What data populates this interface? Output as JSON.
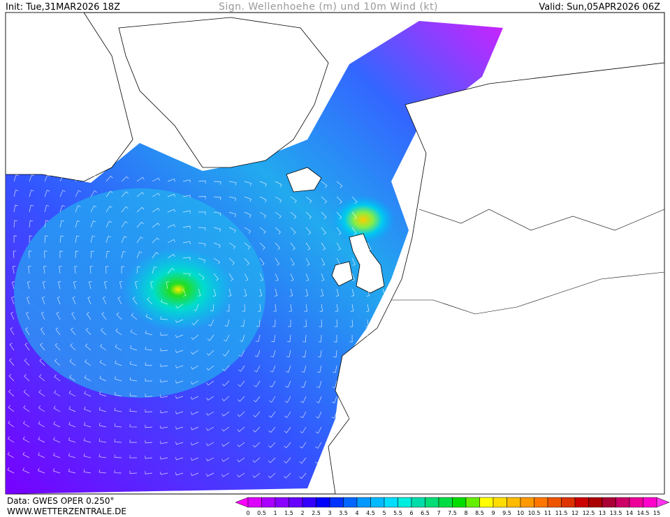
{
  "header": {
    "init": "Init: Tue,31MAR2026 18Z",
    "title": "Sign. Wellenhoehe (m) und 10m Wind (kt)",
    "valid": "Valid: Sun,05APR2026 06Z"
  },
  "footer": {
    "data_source": "Data: GWES OPER 0.250°",
    "website": "WWW.WETTERZENTRALE.DE"
  },
  "colorbar": {
    "labels": [
      "0",
      "0.5",
      "1",
      "1.5",
      "2",
      "2.5",
      "3",
      "3.5",
      "4",
      "4.5",
      "5",
      "5.5",
      "6",
      "6.5",
      "7",
      "7.5",
      "8",
      "8.5",
      "9",
      "9.5",
      "10",
      "10.5",
      "11",
      "11.5",
      "12",
      "12.5",
      "13",
      "13.5",
      "14",
      "14.5",
      "15"
    ]
  }
}
